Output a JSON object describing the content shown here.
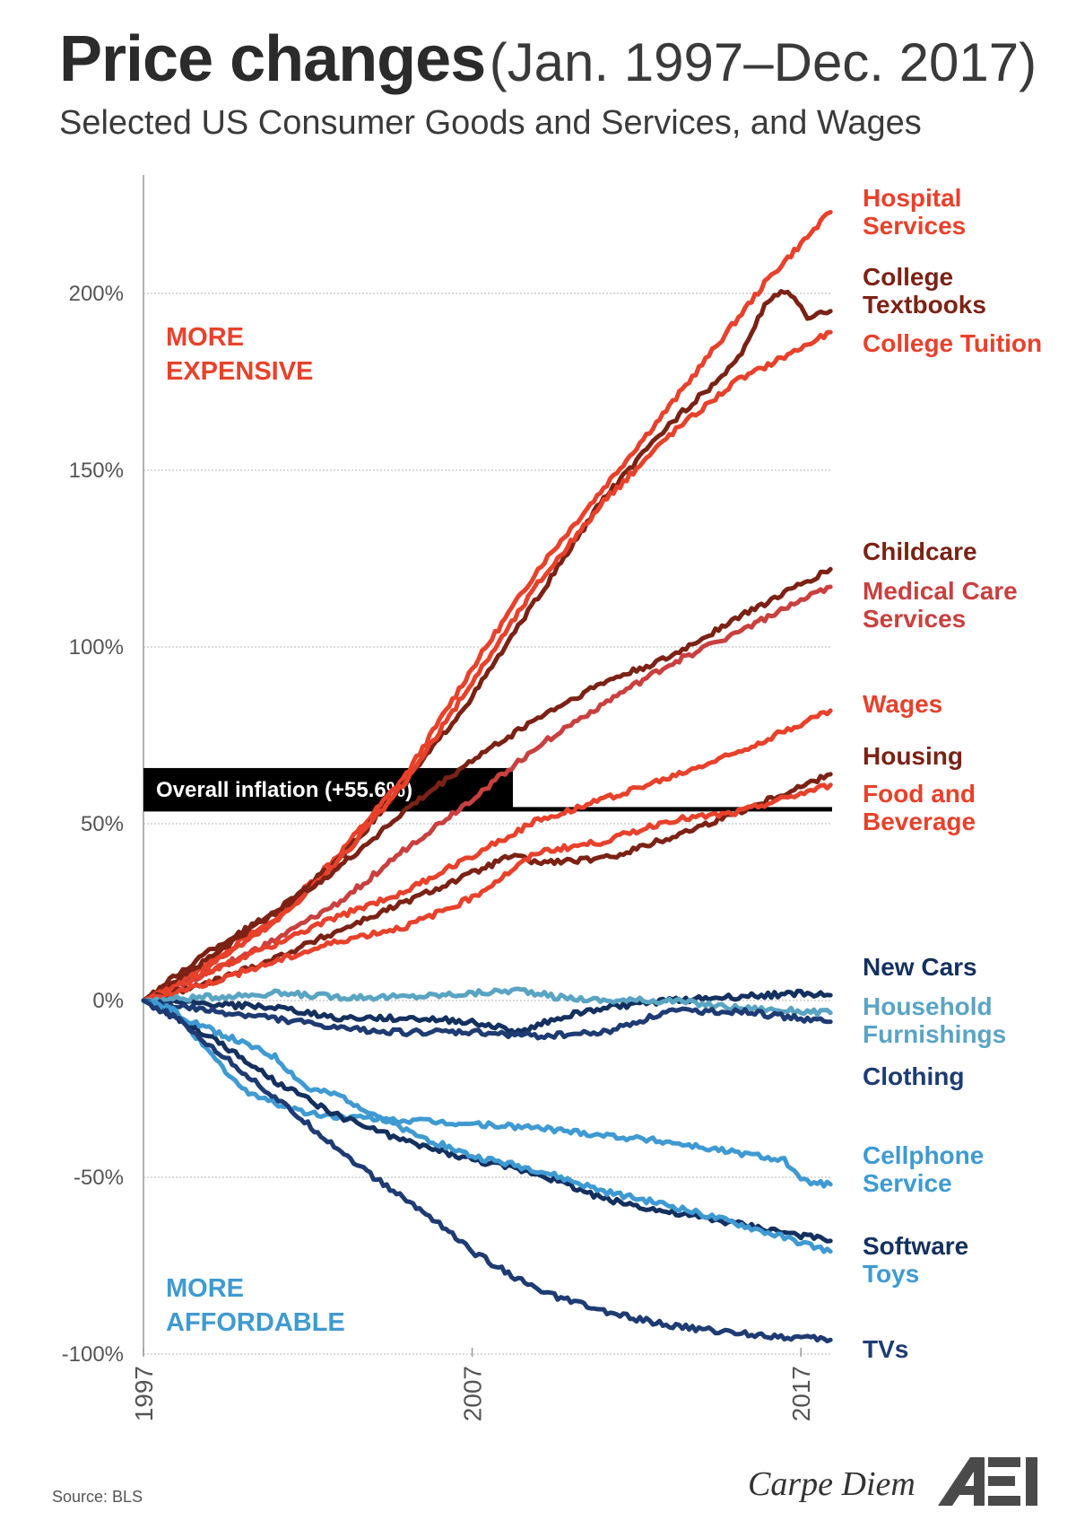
{
  "header": {
    "title": "Price changes",
    "title_range": "(Jan. 1997–Dec. 2017)",
    "subtitle": "Selected US Consumer Goods and Services, and Wages"
  },
  "annotations": {
    "more_expensive": [
      "MORE",
      "EXPENSIVE"
    ],
    "more_affordable": [
      "MORE",
      "AFFORDABLE"
    ],
    "inflation_label": "Overall inflation (+55.6%)"
  },
  "footer": {
    "source": "Source:  BLS",
    "brand": "Carpe Diem",
    "logo_text": "AEI"
  },
  "chart_data": {
    "type": "line",
    "x_ticks": [
      "1997",
      "2007",
      "2017"
    ],
    "xlim": [
      1997,
      2017.95
    ],
    "ylim": [
      -100,
      225
    ],
    "y_ticks": [
      200,
      150,
      100,
      50,
      0,
      -50,
      -100
    ],
    "y_tick_labels": [
      "200%",
      "150%",
      "100%",
      "50%",
      "0%",
      "-50%",
      "-100%"
    ],
    "reference_line": {
      "label": "Overall inflation (+55.6%)",
      "value": 55.6
    },
    "series": [
      {
        "name": "Hospital Services",
        "color": "#e8412b",
        "end_value": 223,
        "points": [
          [
            1997,
            0
          ],
          [
            1999,
            11
          ],
          [
            2001,
            23
          ],
          [
            2003,
            42
          ],
          [
            2005,
            64
          ],
          [
            2007,
            94
          ],
          [
            2009,
            122
          ],
          [
            2011,
            145
          ],
          [
            2013,
            168
          ],
          [
            2015,
            192
          ],
          [
            2016,
            204
          ],
          [
            2017.9,
            223
          ]
        ],
        "label_lines": [
          "Hospital",
          "Services"
        ]
      },
      {
        "name": "College Textbooks",
        "color": "#7b2215",
        "end_value": 195,
        "points": [
          [
            1997,
            0
          ],
          [
            1999,
            14
          ],
          [
            2001,
            25
          ],
          [
            2003,
            40
          ],
          [
            2005,
            62
          ],
          [
            2007,
            86
          ],
          [
            2009,
            114
          ],
          [
            2011,
            142
          ],
          [
            2013,
            163
          ],
          [
            2015,
            180
          ],
          [
            2016,
            198
          ],
          [
            2016.6,
            201
          ],
          [
            2017.2,
            193
          ],
          [
            2017.9,
            195
          ]
        ],
        "label_lines": [
          "College",
          "Textbooks"
        ]
      },
      {
        "name": "College Tuition",
        "color": "#e8412b",
        "end_value": 189,
        "points": [
          [
            1997,
            0
          ],
          [
            1999,
            10
          ],
          [
            2001,
            22
          ],
          [
            2003,
            40
          ],
          [
            2005,
            62
          ],
          [
            2007,
            90
          ],
          [
            2009,
            118
          ],
          [
            2011,
            141
          ],
          [
            2013,
            160
          ],
          [
            2015,
            175
          ],
          [
            2017.9,
            189
          ]
        ],
        "label_lines": [
          "College Tuition"
        ]
      },
      {
        "name": "Childcare",
        "color": "#7b2215",
        "end_value": 122,
        "points": [
          [
            1997,
            0
          ],
          [
            1999,
            12
          ],
          [
            2001,
            25
          ],
          [
            2003,
            38
          ],
          [
            2005,
            54
          ],
          [
            2007,
            68
          ],
          [
            2009,
            80
          ],
          [
            2011,
            90
          ],
          [
            2013,
            97
          ],
          [
            2015,
            108
          ],
          [
            2017.9,
            122
          ]
        ],
        "label_lines": [
          "Childcare"
        ]
      },
      {
        "name": "Medical Care Services",
        "color": "#c9403f",
        "end_value": 117,
        "points": [
          [
            1997,
            0
          ],
          [
            1999,
            8
          ],
          [
            2001,
            17
          ],
          [
            2003,
            28
          ],
          [
            2005,
            43
          ],
          [
            2007,
            57
          ],
          [
            2009,
            72
          ],
          [
            2011,
            84
          ],
          [
            2013,
            95
          ],
          [
            2015,
            104
          ],
          [
            2017.9,
            117
          ]
        ],
        "label_lines": [
          "Medical Care",
          "Services"
        ]
      },
      {
        "name": "Wages",
        "color": "#e8412b",
        "end_value": 82,
        "points": [
          [
            1997,
            0
          ],
          [
            1999,
            8
          ],
          [
            2001,
            16
          ],
          [
            2003,
            24
          ],
          [
            2005,
            31
          ],
          [
            2007,
            41
          ],
          [
            2009,
            51
          ],
          [
            2011,
            57
          ],
          [
            2013,
            63
          ],
          [
            2015,
            70
          ],
          [
            2017.9,
            82
          ]
        ],
        "label_lines": [
          "Wages"
        ]
      },
      {
        "name": "Housing",
        "color": "#7b2215",
        "end_value": 64,
        "points": [
          [
            1997,
            0
          ],
          [
            1999,
            5
          ],
          [
            2001,
            12
          ],
          [
            2003,
            20
          ],
          [
            2005,
            28
          ],
          [
            2007,
            36
          ],
          [
            2008.2,
            41
          ],
          [
            2009,
            39
          ],
          [
            2011,
            40
          ],
          [
            2013,
            46
          ],
          [
            2015,
            53
          ],
          [
            2017.9,
            64
          ]
        ],
        "label_lines": [
          "Housing"
        ]
      },
      {
        "name": "Food and Beverage",
        "color": "#e8412b",
        "end_value": 61,
        "points": [
          [
            1997,
            0
          ],
          [
            1999,
            5
          ],
          [
            2001,
            11
          ],
          [
            2003,
            17
          ],
          [
            2005,
            21
          ],
          [
            2007,
            29
          ],
          [
            2009,
            42
          ],
          [
            2011,
            45
          ],
          [
            2013,
            51
          ],
          [
            2015,
            53
          ],
          [
            2017.9,
            61
          ]
        ],
        "label_lines": [
          "Food and",
          "Beverage"
        ]
      },
      {
        "name": "New Cars",
        "color": "#13305f",
        "end_value": 1.5,
        "points": [
          [
            1997,
            0
          ],
          [
            1999,
            -1
          ],
          [
            2001,
            -2
          ],
          [
            2003,
            -5
          ],
          [
            2005,
            -5
          ],
          [
            2007,
            -6
          ],
          [
            2008.5,
            -9
          ],
          [
            2009.5,
            -5
          ],
          [
            2011,
            -2
          ],
          [
            2013,
            0
          ],
          [
            2015,
            1
          ],
          [
            2017,
            2
          ],
          [
            2017.9,
            1.5
          ]
        ],
        "label_lines": [
          "New Cars"
        ]
      },
      {
        "name": "Household Furnishings",
        "color": "#5aa4c3",
        "end_value": -3.5,
        "points": [
          [
            1997,
            0
          ],
          [
            1999,
            1
          ],
          [
            2001,
            2
          ],
          [
            2003,
            1
          ],
          [
            2005,
            1
          ],
          [
            2007,
            2
          ],
          [
            2008.5,
            3
          ],
          [
            2009.5,
            1
          ],
          [
            2011,
            0
          ],
          [
            2013,
            0
          ],
          [
            2015,
            -2
          ],
          [
            2017.9,
            -3.5
          ]
        ],
        "label_lines": [
          "Household",
          "Furnishings"
        ]
      },
      {
        "name": "Clothing",
        "color": "#1e3b73",
        "end_value": -6,
        "points": [
          [
            1997,
            0
          ],
          [
            1999,
            -3
          ],
          [
            2001,
            -5
          ],
          [
            2003,
            -8
          ],
          [
            2005,
            -9
          ],
          [
            2007,
            -9
          ],
          [
            2009,
            -10
          ],
          [
            2011,
            -9
          ],
          [
            2013,
            -3
          ],
          [
            2015,
            -3
          ],
          [
            2017.9,
            -6
          ]
        ],
        "label_lines": [
          "Clothing"
        ]
      },
      {
        "name": "Cellphone Service",
        "color": "#3f9ad2",
        "end_value": -52,
        "points": [
          [
            1997,
            0
          ],
          [
            1998,
            -3
          ],
          [
            1999,
            -15
          ],
          [
            2000,
            -25
          ],
          [
            2001,
            -29
          ],
          [
            2002,
            -32
          ],
          [
            2003,
            -33
          ],
          [
            2005,
            -34
          ],
          [
            2007,
            -35
          ],
          [
            2009,
            -36
          ],
          [
            2011,
            -38
          ],
          [
            2013,
            -40
          ],
          [
            2015,
            -43
          ],
          [
            2016.5,
            -45
          ],
          [
            2017,
            -51
          ],
          [
            2017.9,
            -52
          ]
        ],
        "label_lines": [
          "Cellphone",
          "Service"
        ]
      },
      {
        "name": "Software",
        "color": "#13305f",
        "end_value": -68,
        "points": [
          [
            1997,
            0
          ],
          [
            1999,
            -10
          ],
          [
            2001,
            -23
          ],
          [
            2003,
            -33
          ],
          [
            2005,
            -40
          ],
          [
            2007,
            -45
          ],
          [
            2009,
            -49
          ],
          [
            2011,
            -56
          ],
          [
            2013,
            -60
          ],
          [
            2015,
            -63
          ],
          [
            2017.9,
            -68
          ]
        ],
        "label_lines": [
          "Software"
        ]
      },
      {
        "name": "Toys",
        "color": "#3f9ad2",
        "end_value": -71,
        "points": [
          [
            1997,
            0
          ],
          [
            1999,
            -8
          ],
          [
            2001,
            -16
          ],
          [
            2002,
            -25
          ],
          [
            2003,
            -27
          ],
          [
            2005,
            -37
          ],
          [
            2007,
            -44
          ],
          [
            2009,
            -48
          ],
          [
            2011,
            -54
          ],
          [
            2013,
            -58
          ],
          [
            2015,
            -63
          ],
          [
            2017.9,
            -71
          ]
        ],
        "label_lines": [
          "Toys"
        ]
      },
      {
        "name": "TVs",
        "color": "#1e3b73",
        "end_value": -96,
        "points": [
          [
            1997,
            0
          ],
          [
            1998,
            -5
          ],
          [
            2000,
            -20
          ],
          [
            2002,
            -35
          ],
          [
            2004,
            -50
          ],
          [
            2006,
            -63
          ],
          [
            2007,
            -71
          ],
          [
            2009,
            -82
          ],
          [
            2011,
            -88
          ],
          [
            2013,
            -92
          ],
          [
            2015,
            -94
          ],
          [
            2017.9,
            -96
          ]
        ],
        "label_lines": [
          "TVs"
        ]
      }
    ]
  }
}
